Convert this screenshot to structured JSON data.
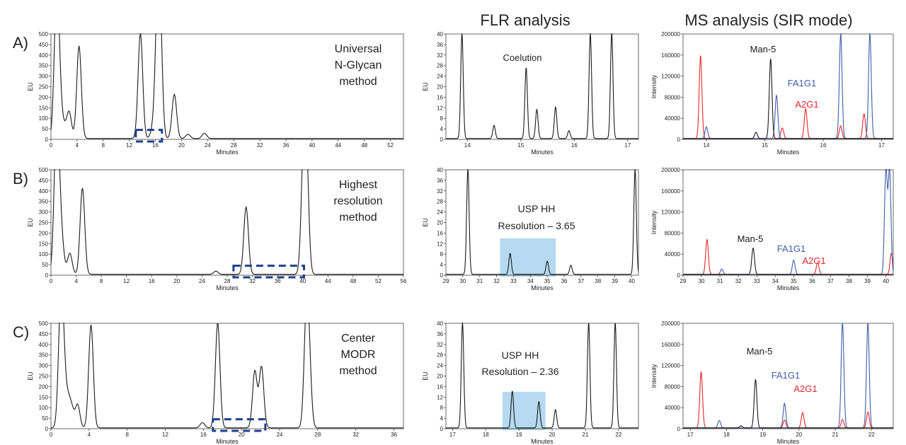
{
  "headers": {
    "flr": "FLR analysis",
    "ms": "MS analysis (SIR mode)"
  },
  "colors": {
    "trace": "#1a1a1a",
    "red": "#e8262a",
    "blue": "#3d5ea8",
    "box": "#1f3f8f",
    "shade": "#a8d4ee"
  },
  "rows": [
    {
      "label": "A)",
      "method": [
        "Universal",
        "N-Glycan",
        "method"
      ],
      "flr_annotation": [
        "Coelution"
      ],
      "ms_labels": [
        "Man-5",
        "FA1G1",
        "A2G1"
      ]
    },
    {
      "label": "B)",
      "method": [
        "Highest",
        "resolution",
        "method"
      ],
      "flr_annotation": [
        "USP HH",
        "Resolution – 3.65"
      ],
      "ms_labels": [
        "Man-5",
        "FA1G1",
        "A2G1"
      ]
    },
    {
      "label": "C)",
      "method": [
        "Center",
        "MODR",
        "method"
      ],
      "flr_annotation": [
        "USP HH",
        "Resolution – 2.36"
      ],
      "ms_labels": [
        "Man-5",
        "FA1G1",
        "A2G1"
      ]
    }
  ],
  "chart_data": [
    {
      "id": "A-full",
      "type": "line",
      "xlabel": "Minutes",
      "ylabel": "EU",
      "xlim": [
        0,
        54
      ],
      "ylim": [
        0,
        500
      ],
      "xticks": [
        0,
        4,
        8,
        12,
        16,
        20,
        24,
        28,
        32,
        36,
        40,
        44,
        48,
        52
      ],
      "yticks": [
        0,
        50,
        100,
        150,
        200,
        250,
        300,
        350,
        400,
        450,
        500
      ],
      "peaks": [
        [
          0.8,
          500
        ],
        [
          1.0,
          120
        ],
        [
          1.2,
          180
        ],
        [
          1.6,
          60
        ],
        [
          2.2,
          40
        ],
        [
          2.8,
          120
        ],
        [
          4.3,
          440
        ],
        [
          13.7,
          500
        ],
        [
          15.6,
          40
        ],
        [
          16.3,
          500
        ],
        [
          16.7,
          500
        ],
        [
          18.9,
          210
        ],
        [
          21,
          20
        ],
        [
          23.5,
          25
        ]
      ],
      "highlight_box": [
        13,
        17
      ]
    },
    {
      "id": "A-flr",
      "type": "line",
      "xlabel": "Minutes",
      "ylabel": "EU",
      "xlim": [
        13.6,
        17.2
      ],
      "ylim": [
        0,
        40
      ],
      "xticks": [
        14,
        15,
        16,
        17
      ],
      "yticks": [
        0,
        4,
        8,
        12,
        16,
        20,
        24,
        28,
        32,
        36,
        40
      ],
      "peaks": [
        [
          13.9,
          40
        ],
        [
          14.5,
          5
        ],
        [
          15.1,
          27
        ],
        [
          15.3,
          11
        ],
        [
          15.65,
          12
        ],
        [
          15.9,
          3
        ],
        [
          16.3,
          40
        ],
        [
          16.7,
          40
        ]
      ]
    },
    {
      "id": "A-ms",
      "type": "line",
      "xlabel": "Minutes",
      "ylabel": "Intensity",
      "xlim": [
        13.6,
        17.2
      ],
      "ylim": [
        0,
        200000
      ],
      "xticks": [
        14,
        15,
        16,
        17
      ],
      "yticks": [
        0,
        40000,
        80000,
        120000,
        160000,
        200000
      ],
      "series": [
        {
          "name": "A2G1",
          "color": "red",
          "peaks": [
            [
              13.9,
              158000
            ],
            [
              15.3,
              20000
            ],
            [
              15.7,
              57000
            ],
            [
              16.3,
              24000
            ],
            [
              16.7,
              47000
            ]
          ]
        },
        {
          "name": "FA1G1",
          "color": "blue",
          "peaks": [
            [
              14.0,
              22000
            ],
            [
              15.2,
              82000
            ],
            [
              16.3,
              200000
            ],
            [
              16.8,
              200000
            ]
          ]
        },
        {
          "name": "Man-5",
          "color": "black",
          "peaks": [
            [
              14.85,
              12000
            ],
            [
              15.1,
              152000
            ]
          ]
        }
      ]
    },
    {
      "id": "B-full",
      "type": "line",
      "xlabel": "Minutes",
      "ylabel": "EU",
      "xlim": [
        0,
        56
      ],
      "ylim": [
        0,
        500
      ],
      "xticks": [
        0,
        4,
        8,
        12,
        16,
        20,
        24,
        28,
        32,
        36,
        40,
        44,
        48,
        52,
        56
      ],
      "yticks": [
        0,
        50,
        100,
        150,
        200,
        250,
        300,
        350,
        400,
        450,
        500
      ],
      "peaks": [
        [
          0.8,
          500
        ],
        [
          1.1,
          280
        ],
        [
          1.5,
          150
        ],
        [
          1.9,
          60
        ],
        [
          3.0,
          100
        ],
        [
          5.0,
          410
        ],
        [
          26.2,
          15
        ],
        [
          31,
          320
        ],
        [
          40.1,
          500
        ],
        [
          40.6,
          500
        ]
      ],
      "highlight_box": [
        29,
        40.2
      ]
    },
    {
      "id": "B-flr",
      "type": "line",
      "xlabel": "Minutes",
      "ylabel": "EU",
      "xlim": [
        29,
        40.4
      ],
      "ylim": [
        0,
        40
      ],
      "xticks": [
        29,
        30,
        31,
        32,
        33,
        34,
        35,
        36,
        37,
        38,
        39,
        40
      ],
      "yticks": [
        0,
        4,
        8,
        12,
        16,
        20,
        24,
        28,
        32,
        36,
        40
      ],
      "peaks": [
        [
          30.3,
          40
        ],
        [
          32.8,
          8
        ],
        [
          35.0,
          5
        ],
        [
          36.4,
          3.5
        ],
        [
          40.2,
          40
        ]
      ],
      "shade": [
        32.2,
        35.5
      ]
    },
    {
      "id": "B-ms",
      "type": "line",
      "xlabel": "Minutes",
      "ylabel": "Intensity",
      "xlim": [
        29,
        40.4
      ],
      "ylim": [
        0,
        200000
      ],
      "xticks": [
        29,
        30,
        31,
        32,
        33,
        34,
        35,
        36,
        37,
        38,
        39,
        40
      ],
      "yticks": [
        0,
        40000,
        80000,
        120000,
        160000,
        200000
      ],
      "series": [
        {
          "name": "A2G1",
          "color": "red",
          "peaks": [
            [
              30.3,
              66000
            ],
            [
              36.3,
              22000
            ],
            [
              40.3,
              40000
            ]
          ]
        },
        {
          "name": "FA1G1",
          "color": "blue",
          "peaks": [
            [
              31.1,
              10000
            ],
            [
              35.0,
              27000
            ],
            [
              40.0,
              200000
            ],
            [
              40.2,
              200000
            ]
          ]
        },
        {
          "name": "Man-5",
          "color": "black",
          "peaks": [
            [
              32.8,
              50000
            ]
          ]
        }
      ]
    },
    {
      "id": "C-full",
      "type": "line",
      "xlabel": "Minutes",
      "ylabel": "EU",
      "xlim": [
        0,
        37
      ],
      "ylim": [
        0,
        500
      ],
      "xticks": [
        0,
        4,
        8,
        12,
        16,
        20,
        24,
        28,
        32,
        36
      ],
      "yticks": [
        0,
        50,
        100,
        150,
        200,
        250,
        300,
        350,
        400,
        450,
        500
      ],
      "peaks": [
        [
          1.0,
          500
        ],
        [
          1.3,
          300
        ],
        [
          1.8,
          120
        ],
        [
          2.2,
          80
        ],
        [
          2.8,
          110
        ],
        [
          4.2,
          490
        ],
        [
          15.9,
          25
        ],
        [
          17.5,
          500
        ],
        [
          21.4,
          270
        ],
        [
          22.1,
          290
        ],
        [
          26.8,
          500
        ],
        [
          27.1,
          270
        ]
      ],
      "highlight_box": [
        17,
        22.5
      ]
    },
    {
      "id": "C-flr",
      "type": "line",
      "xlabel": "Minutes",
      "ylabel": "EU",
      "xlim": [
        16.8,
        22.6
      ],
      "ylim": [
        0,
        40
      ],
      "xticks": [
        17,
        18,
        19,
        20,
        21,
        22
      ],
      "yticks": [
        0,
        4,
        8,
        12,
        16,
        20,
        24,
        28,
        32,
        36,
        40
      ],
      "peaks": [
        [
          17.3,
          40
        ],
        [
          18.8,
          14
        ],
        [
          19.6,
          10
        ],
        [
          20.1,
          7
        ],
        [
          21.1,
          40
        ],
        [
          21.9,
          40
        ]
      ],
      "shade": [
        18.5,
        19.8
      ]
    },
    {
      "id": "C-ms",
      "type": "line",
      "xlabel": "Minutes",
      "ylabel": "Intensity",
      "xlim": [
        16.8,
        22.6
      ],
      "ylim": [
        0,
        200000
      ],
      "xticks": [
        17,
        18,
        19,
        20,
        21,
        22
      ],
      "yticks": [
        0,
        40000,
        80000,
        120000,
        160000,
        200000
      ],
      "series": [
        {
          "name": "A2G1",
          "color": "red",
          "peaks": [
            [
              17.3,
              107000
            ],
            [
              19.6,
              15000
            ],
            [
              20.1,
              29000
            ],
            [
              21.2,
              16000
            ],
            [
              21.9,
              30000
            ]
          ]
        },
        {
          "name": "FA1G1",
          "color": "blue",
          "peaks": [
            [
              17.8,
              14000
            ],
            [
              19.6,
              47000
            ],
            [
              21.2,
              200000
            ],
            [
              21.9,
              200000
            ]
          ]
        },
        {
          "name": "Man-5",
          "color": "black",
          "peaks": [
            [
              18.4,
              4000
            ],
            [
              18.8,
              92000
            ]
          ]
        }
      ]
    }
  ]
}
